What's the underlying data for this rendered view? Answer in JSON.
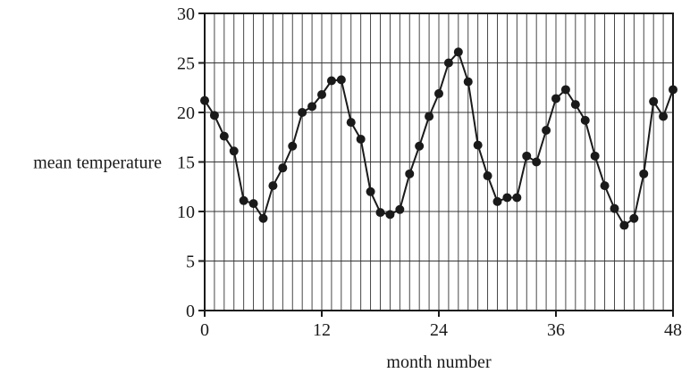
{
  "chart_data": {
    "type": "line",
    "xlabel": "month number",
    "ylabel": "mean temperature",
    "xlim": [
      0,
      48
    ],
    "ylim": [
      0,
      30
    ],
    "x_ticks": [
      0,
      12,
      24,
      36,
      48
    ],
    "x_tick_labels": [
      "0",
      "12",
      "24",
      "36",
      "48"
    ],
    "y_ticks": [
      0,
      5,
      10,
      15,
      20,
      25,
      30
    ],
    "y_tick_labels": [
      "0",
      "5",
      "10",
      "15",
      "20",
      "25",
      "30"
    ],
    "grid": {
      "x_minor_step": 1,
      "y_major_step": 5
    },
    "series": [
      {
        "x": [
          0,
          1,
          2,
          3,
          4,
          5,
          6,
          7,
          8,
          9,
          10,
          11,
          12,
          13,
          14,
          15,
          16,
          17,
          18,
          19,
          20,
          21,
          22,
          23,
          24,
          25,
          26,
          27,
          28,
          29,
          30,
          31,
          32,
          33,
          34,
          35,
          36,
          37,
          38,
          39,
          40,
          41,
          42,
          43,
          44,
          45,
          46,
          47,
          48
        ],
        "values": [
          21.2,
          19.7,
          17.6,
          16.1,
          11.1,
          10.8,
          9.3,
          12.6,
          14.4,
          16.6,
          20.0,
          20.6,
          21.8,
          23.2,
          23.3,
          19.0,
          17.3,
          12.0,
          9.9,
          9.7,
          10.2,
          13.8,
          16.6,
          19.6,
          21.9,
          25.0,
          26.1,
          23.1,
          16.7,
          13.6,
          11.0,
          11.4,
          11.4,
          15.6,
          15.0,
          18.2,
          21.4,
          22.3,
          20.8,
          19.2,
          15.6,
          12.6,
          10.3,
          8.6,
          9.3,
          13.8,
          21.1,
          19.6,
          22.3
        ]
      }
    ]
  }
}
